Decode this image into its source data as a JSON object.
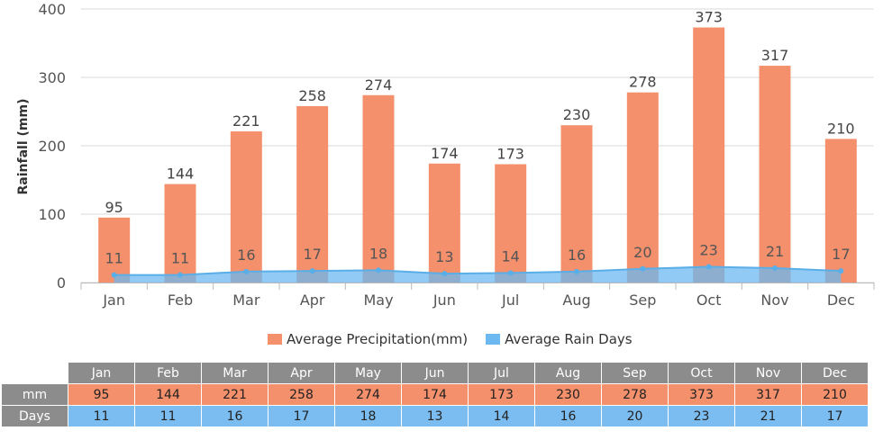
{
  "colors": {
    "precip": "#f4906c",
    "days": "#6cb8f0",
    "grid": "#d9d9d9",
    "header": "#8c8c8c"
  },
  "chart_data": {
    "type": "bar",
    "categories": [
      "Jan",
      "Feb",
      "Mar",
      "Apr",
      "May",
      "Jun",
      "Jul",
      "Aug",
      "Sep",
      "Oct",
      "Nov",
      "Dec"
    ],
    "series": [
      {
        "name": "Average Precipitation(mm)",
        "type": "bar",
        "values": [
          95,
          144,
          221,
          258,
          274,
          174,
          173,
          230,
          278,
          373,
          317,
          210
        ]
      },
      {
        "name": "Average Rain Days",
        "type": "area",
        "values": [
          11,
          11,
          16,
          17,
          18,
          13,
          14,
          16,
          20,
          23,
          21,
          17
        ]
      }
    ],
    "ylabel": "Rainfall (mm)",
    "ylim": [
      0,
      400
    ],
    "yticks": [
      0,
      100,
      200,
      300,
      400
    ],
    "grid": true,
    "legend_position": "bottom"
  },
  "table": {
    "headers": [
      "Jan",
      "Feb",
      "Mar",
      "Apr",
      "May",
      "Jun",
      "Jul",
      "Aug",
      "Sep",
      "Oct",
      "Nov",
      "Dec"
    ],
    "rows": [
      {
        "label": "mm",
        "values": [
          "95",
          "144",
          "221",
          "258",
          "274",
          "174",
          "173",
          "230",
          "278",
          "373",
          "317",
          "210"
        ]
      },
      {
        "label": "Days",
        "values": [
          "11",
          "11",
          "16",
          "17",
          "18",
          "13",
          "14",
          "16",
          "20",
          "23",
          "21",
          "17"
        ]
      }
    ]
  }
}
